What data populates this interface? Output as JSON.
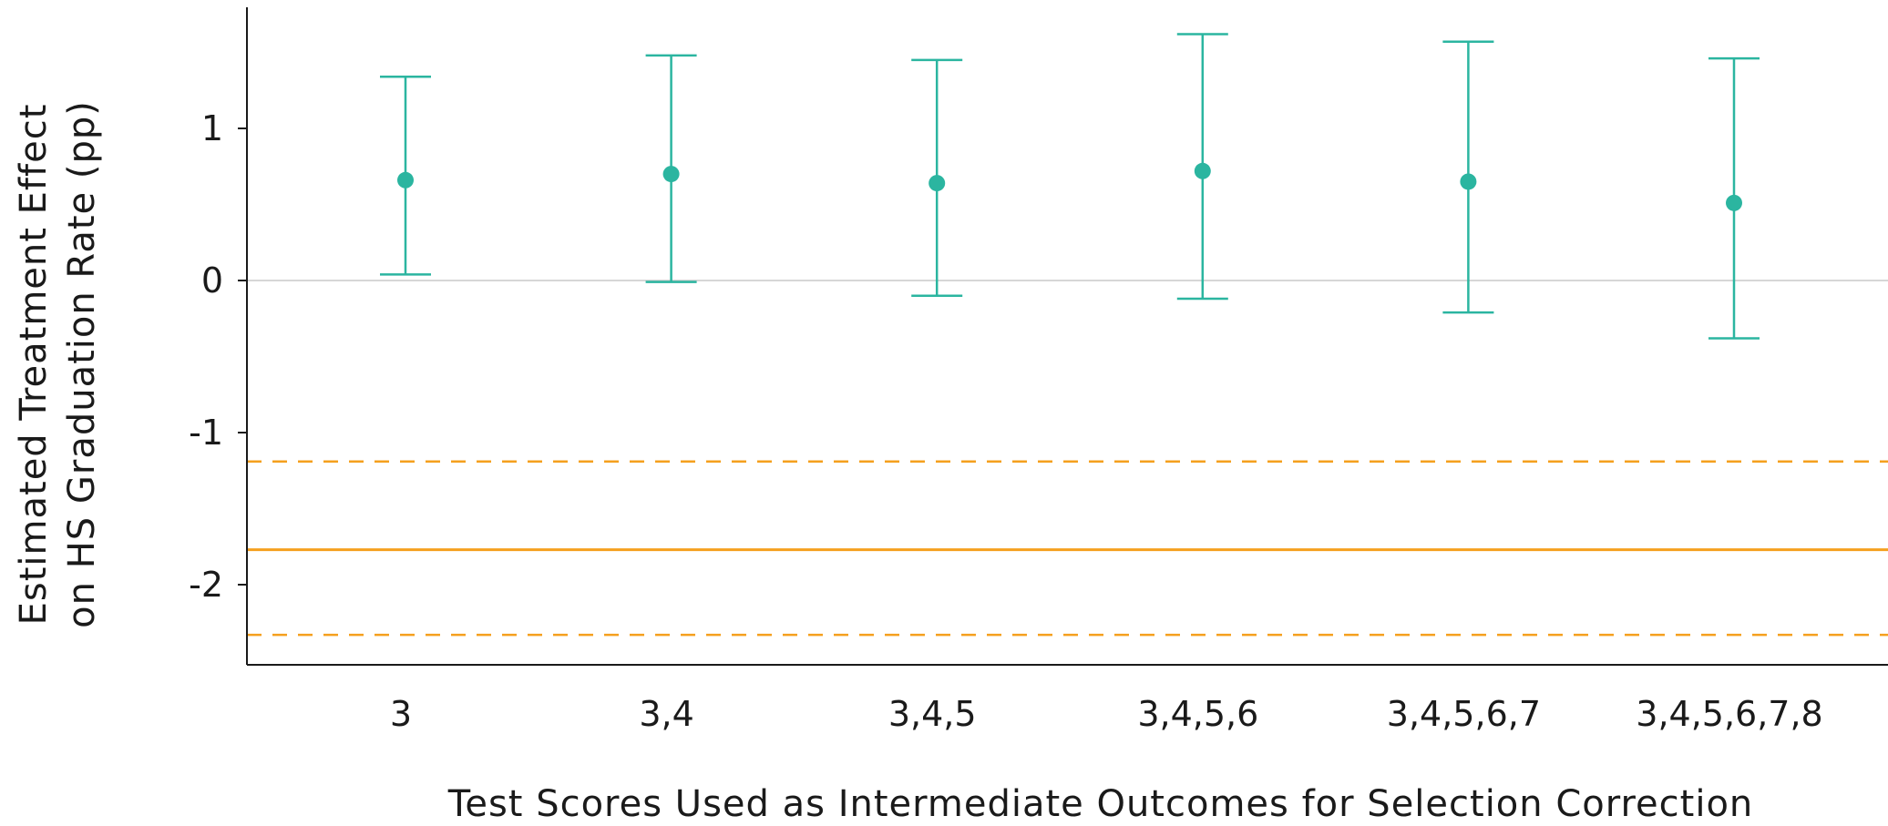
{
  "chart_data": {
    "type": "scatter",
    "title": "",
    "xlabel": "Test Scores Used as Intermediate Outcomes for Selection Correction",
    "ylabel_lines": [
      "Estimated Treatment Effect",
      "on HS Graduation Rate (pp)"
    ],
    "categories": [
      "3",
      "3,4",
      "3,4,5",
      "3,4,5,6",
      "3,4,5,6,7",
      "3,4,5,6,7,8"
    ],
    "yticks": [
      "1",
      "0",
      "-1",
      "-2"
    ],
    "ytick_values": [
      1,
      0,
      -1,
      -2
    ],
    "ylim": [
      -2.5,
      1.8
    ],
    "grid": false,
    "zero_line": true,
    "series": [
      {
        "points": [
          {
            "estimate": 0.66,
            "ci_low": 0.04,
            "ci_high": 1.34
          },
          {
            "estimate": 0.7,
            "ci_low": -0.01,
            "ci_high": 1.48
          },
          {
            "estimate": 0.64,
            "ci_low": -0.1,
            "ci_high": 1.45
          },
          {
            "estimate": 0.72,
            "ci_low": -0.12,
            "ci_high": 1.62
          },
          {
            "estimate": 0.65,
            "ci_low": -0.21,
            "ci_high": 1.57
          },
          {
            "estimate": 0.51,
            "ci_low": -0.38,
            "ci_high": 1.46
          }
        ]
      }
    ],
    "reference_line": {
      "value": -1.77,
      "ci_low": -2.33,
      "ci_high": -1.19
    },
    "colors": {
      "points": "#2bb5a0",
      "reference": "#f5a01e",
      "zero_line": "#c8c8c8",
      "axis": "#1a1a1a"
    }
  }
}
